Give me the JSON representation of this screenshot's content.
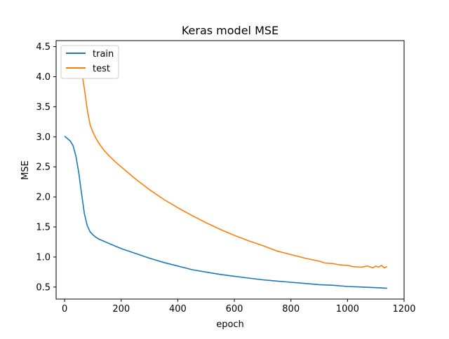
{
  "chart_data": {
    "type": "line",
    "title": "Keras model MSE",
    "xlabel": "epoch",
    "ylabel": "MSE",
    "xlim": [
      -30,
      1200
    ],
    "ylim": [
      0.3,
      4.6
    ],
    "xticks": [
      0,
      200,
      400,
      600,
      800,
      1000,
      1200
    ],
    "yticks": [
      0.5,
      1.0,
      1.5,
      2.0,
      2.5,
      3.0,
      3.5,
      4.0,
      4.5
    ],
    "xtick_labels": [
      "0",
      "200",
      "400",
      "600",
      "800",
      "1000",
      "1200"
    ],
    "ytick_labels": [
      "0.5",
      "1.0",
      "1.5",
      "2.0",
      "2.5",
      "3.0",
      "3.5",
      "4.0",
      "4.5"
    ],
    "grid": false,
    "legend_position": "upper-left",
    "series": [
      {
        "name": "train",
        "color": "#1f77b4",
        "x": [
          0,
          10,
          20,
          30,
          40,
          50,
          60,
          70,
          80,
          90,
          100,
          110,
          120,
          140,
          160,
          180,
          200,
          250,
          300,
          350,
          400,
          450,
          500,
          550,
          600,
          650,
          700,
          750,
          800,
          850,
          900,
          950,
          1000,
          1050,
          1100,
          1140
        ],
        "y": [
          3.01,
          2.97,
          2.93,
          2.85,
          2.68,
          2.4,
          2.05,
          1.72,
          1.52,
          1.42,
          1.37,
          1.33,
          1.3,
          1.26,
          1.22,
          1.18,
          1.14,
          1.06,
          0.98,
          0.91,
          0.85,
          0.79,
          0.75,
          0.71,
          0.68,
          0.65,
          0.62,
          0.6,
          0.58,
          0.56,
          0.54,
          0.53,
          0.51,
          0.5,
          0.49,
          0.48
        ]
      },
      {
        "name": "test",
        "color": "#ff7f0e",
        "x": [
          40,
          50,
          60,
          70,
          80,
          90,
          100,
          110,
          120,
          140,
          160,
          180,
          200,
          250,
          300,
          350,
          400,
          450,
          500,
          550,
          600,
          650,
          700,
          750,
          800,
          850,
          870,
          900,
          920,
          950,
          970,
          1000,
          1020,
          1050,
          1070,
          1090,
          1100,
          1110,
          1120,
          1130,
          1140
        ],
        "y": [
          4.42,
          4.3,
          4.1,
          3.8,
          3.45,
          3.2,
          3.08,
          2.98,
          2.9,
          2.77,
          2.67,
          2.58,
          2.5,
          2.3,
          2.12,
          1.96,
          1.82,
          1.69,
          1.57,
          1.46,
          1.36,
          1.27,
          1.19,
          1.1,
          1.04,
          0.98,
          0.96,
          0.93,
          0.9,
          0.89,
          0.87,
          0.86,
          0.84,
          0.83,
          0.85,
          0.82,
          0.85,
          0.83,
          0.86,
          0.82,
          0.84
        ]
      }
    ]
  }
}
